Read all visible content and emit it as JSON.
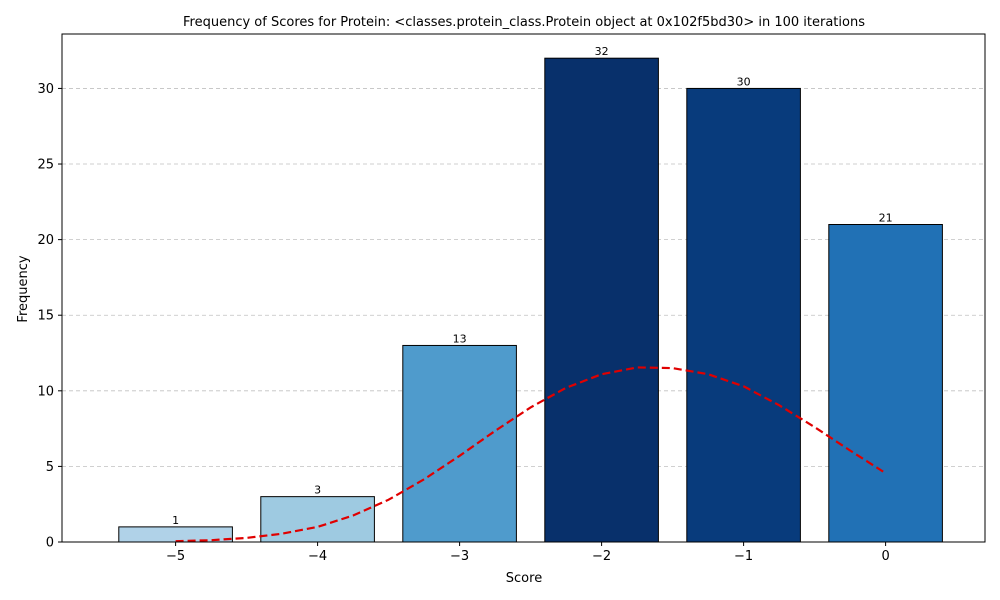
{
  "chart_data": {
    "type": "bar",
    "title": "Frequency of Scores for Protein: <classes.protein_class.Protein object at 0x102f5bd30> in 100 iterations",
    "xlabel": "Score",
    "ylabel": "Frequency",
    "categories": [
      -5,
      -4,
      -3,
      -2,
      -1,
      0
    ],
    "x_tick_labels": [
      "−5",
      "−4",
      "−3",
      "−2",
      "−1",
      "0"
    ],
    "values": [
      1,
      3,
      13,
      32,
      30,
      21
    ],
    "data_labels": [
      "1",
      "3",
      "13",
      "32",
      "30",
      "21"
    ],
    "bar_colors": [
      "#b0d2e8",
      "#9ecae1",
      "#4f9bcc",
      "#08306b",
      "#083b7c",
      "#2171b5"
    ],
    "bar_edge_color": "#000000",
    "xlim": [
      -5.8,
      0.7
    ],
    "ylim": [
      0,
      33.6
    ],
    "y_ticks": [
      0,
      5,
      10,
      15,
      20,
      25,
      30
    ],
    "y_tick_labels": [
      "0",
      "5",
      "10",
      "15",
      "20",
      "25",
      "30"
    ],
    "grid": {
      "axis": "y",
      "style": "dashed",
      "color": "#c0c0c0"
    },
    "overlay_curve": {
      "type": "line",
      "style": "dashed",
      "color": "#e00000",
      "x": [
        -5.0,
        -4.75,
        -4.5,
        -4.25,
        -4.0,
        -3.75,
        -3.5,
        -3.25,
        -3.0,
        -2.75,
        -2.5,
        -2.25,
        -2.0,
        -1.75,
        -1.5,
        -1.25,
        -1.0,
        -0.75,
        -0.5,
        -0.25,
        0.0
      ],
      "y": [
        0.05,
        0.12,
        0.27,
        0.55,
        1.0,
        1.75,
        2.8,
        4.15,
        5.7,
        7.35,
        8.9,
        10.2,
        11.1,
        11.55,
        11.5,
        11.1,
        10.3,
        9.05,
        7.6,
        6.05,
        4.55
      ]
    }
  }
}
